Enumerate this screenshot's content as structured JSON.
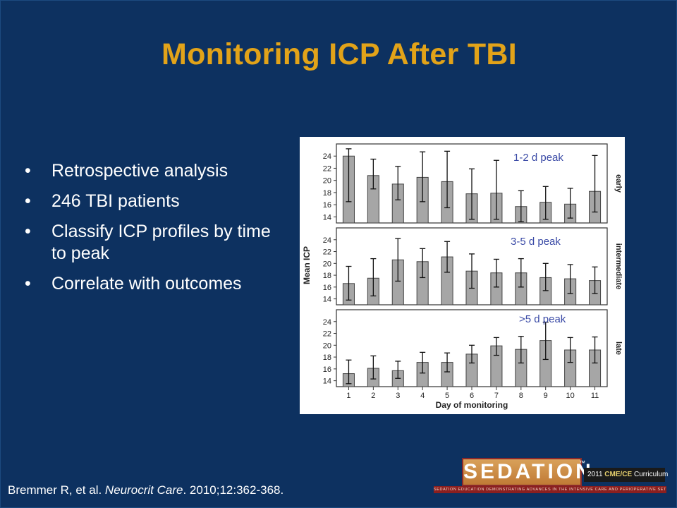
{
  "slide": {
    "title": "Monitoring ICP After TBI",
    "bullets": [
      "Retrospective analysis",
      "246 TBI patients",
      "Classify ICP profiles by time to peak",
      "Correlate with outcomes"
    ],
    "bullet_glyph": "•",
    "citation": {
      "authors": "Bremmer R, et al. ",
      "journal": "Neurocrit Care",
      "details": ". 2010;12:362-368."
    },
    "peak_labels": [
      "1-2 d peak",
      "3-5 d peak",
      ">5 d peak"
    ],
    "logo": {
      "main": "SEDATION",
      "tm": "™",
      "year": "2011 ",
      "cme": "CME/CE",
      "curriculum": " Curriculum",
      "strip": "SEDATION EDUCATION DEMONSTRATING ADVANCES IN THE INTENSIVE CARE AND PERIOPERATIVE SETTINGS"
    }
  },
  "colors": {
    "background": "#0d3160",
    "title": "#e2a319",
    "bar": "#a6a6a6",
    "peak_label": "#3a4aa6"
  },
  "chart_data": {
    "type": "bar",
    "ylabel": "Mean ICP",
    "xlabel": "Day of monitoring",
    "categories": [
      "1",
      "2",
      "3",
      "4",
      "5",
      "6",
      "7",
      "8",
      "9",
      "10",
      "11"
    ],
    "yticks": [
      14,
      16,
      18,
      20,
      22,
      24
    ],
    "ylim": [
      13,
      26
    ],
    "panels": [
      {
        "name": "early",
        "values": [
          24.0,
          20.8,
          19.4,
          20.5,
          19.8,
          17.8,
          17.9,
          15.7,
          16.4,
          16.1,
          18.2
        ],
        "err_low": [
          16.5,
          18.6,
          16.8,
          16.5,
          15.5,
          13.6,
          13.6,
          13.2,
          13.6,
          13.8,
          14.8
        ],
        "err_high": [
          25.2,
          23.5,
          22.3,
          24.7,
          24.8,
          21.9,
          23.3,
          18.3,
          19.0,
          18.7,
          24.1
        ]
      },
      {
        "name": "intermediate",
        "values": [
          16.6,
          17.5,
          20.6,
          20.3,
          21.1,
          18.7,
          18.4,
          18.4,
          17.6,
          17.4,
          17.1
        ],
        "err_low": [
          13.8,
          14.5,
          17.0,
          17.6,
          18.5,
          15.8,
          16.0,
          16.0,
          15.4,
          14.9,
          14.9
        ],
        "err_high": [
          19.5,
          20.8,
          24.2,
          22.5,
          23.7,
          21.6,
          20.7,
          20.8,
          20.0,
          19.8,
          19.4
        ]
      },
      {
        "name": "late",
        "values": [
          15.2,
          16.1,
          15.7,
          17.1,
          17.1,
          18.5,
          19.9,
          19.3,
          20.8,
          19.2,
          19.2
        ],
        "err_low": [
          13.5,
          14.3,
          14.4,
          15.3,
          15.5,
          17.0,
          18.3,
          17.0,
          17.6,
          17.1,
          17.0
        ],
        "err_high": [
          17.5,
          18.2,
          17.3,
          18.8,
          18.7,
          20.0,
          21.3,
          21.5,
          23.9,
          21.3,
          21.4
        ]
      }
    ]
  }
}
